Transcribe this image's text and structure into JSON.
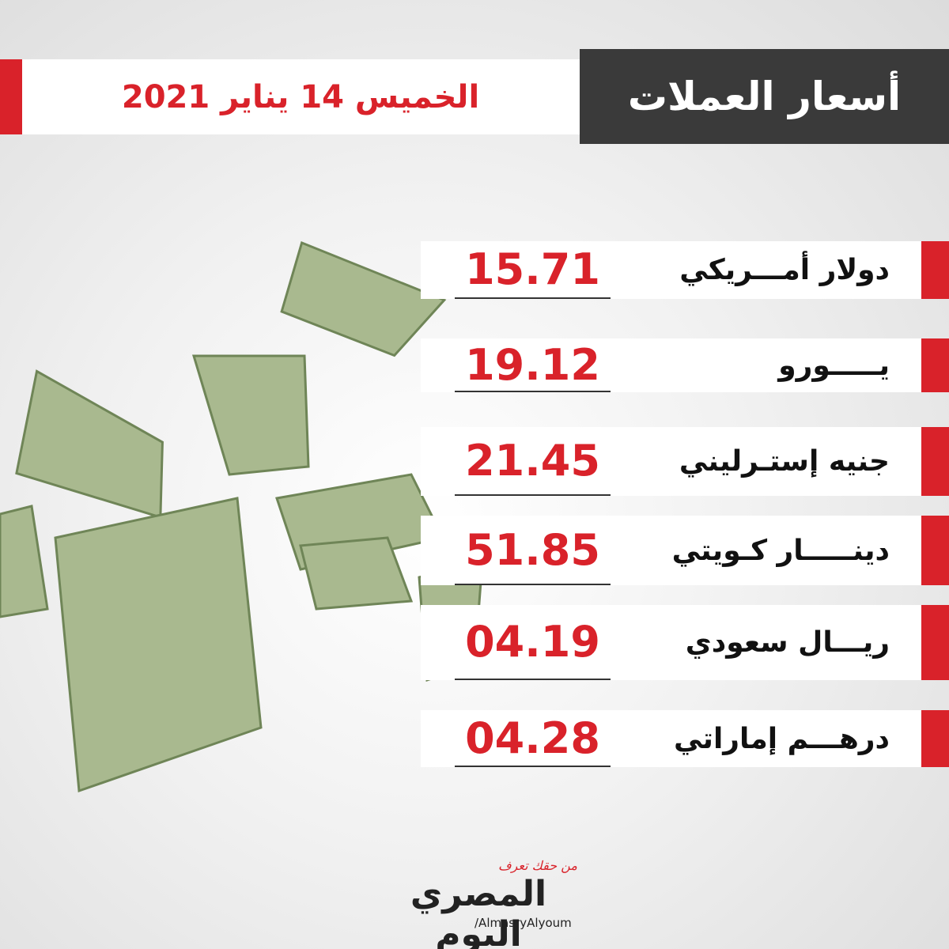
{
  "header": {
    "title": "أسعار العملات",
    "date": "الخميس 14 يناير 2021"
  },
  "rates": [
    {
      "name": "دولار أمـــريكي",
      "value": "15.71"
    },
    {
      "name": "يـــــورو",
      "value": "19.12"
    },
    {
      "name": "جنيه إستـرليني",
      "value": "21.45"
    },
    {
      "name": "دينـــــار كـويتي",
      "value": "51.85"
    },
    {
      "name": "ريـــال سعودي",
      "value": "04.19"
    },
    {
      "name": "درهـــم إماراتي",
      "value": "04.28"
    }
  ],
  "footer": {
    "tagline": "من حقك تعرف",
    "logo": "المصري اليوم",
    "handle": "/AlmasryAlyoum"
  }
}
